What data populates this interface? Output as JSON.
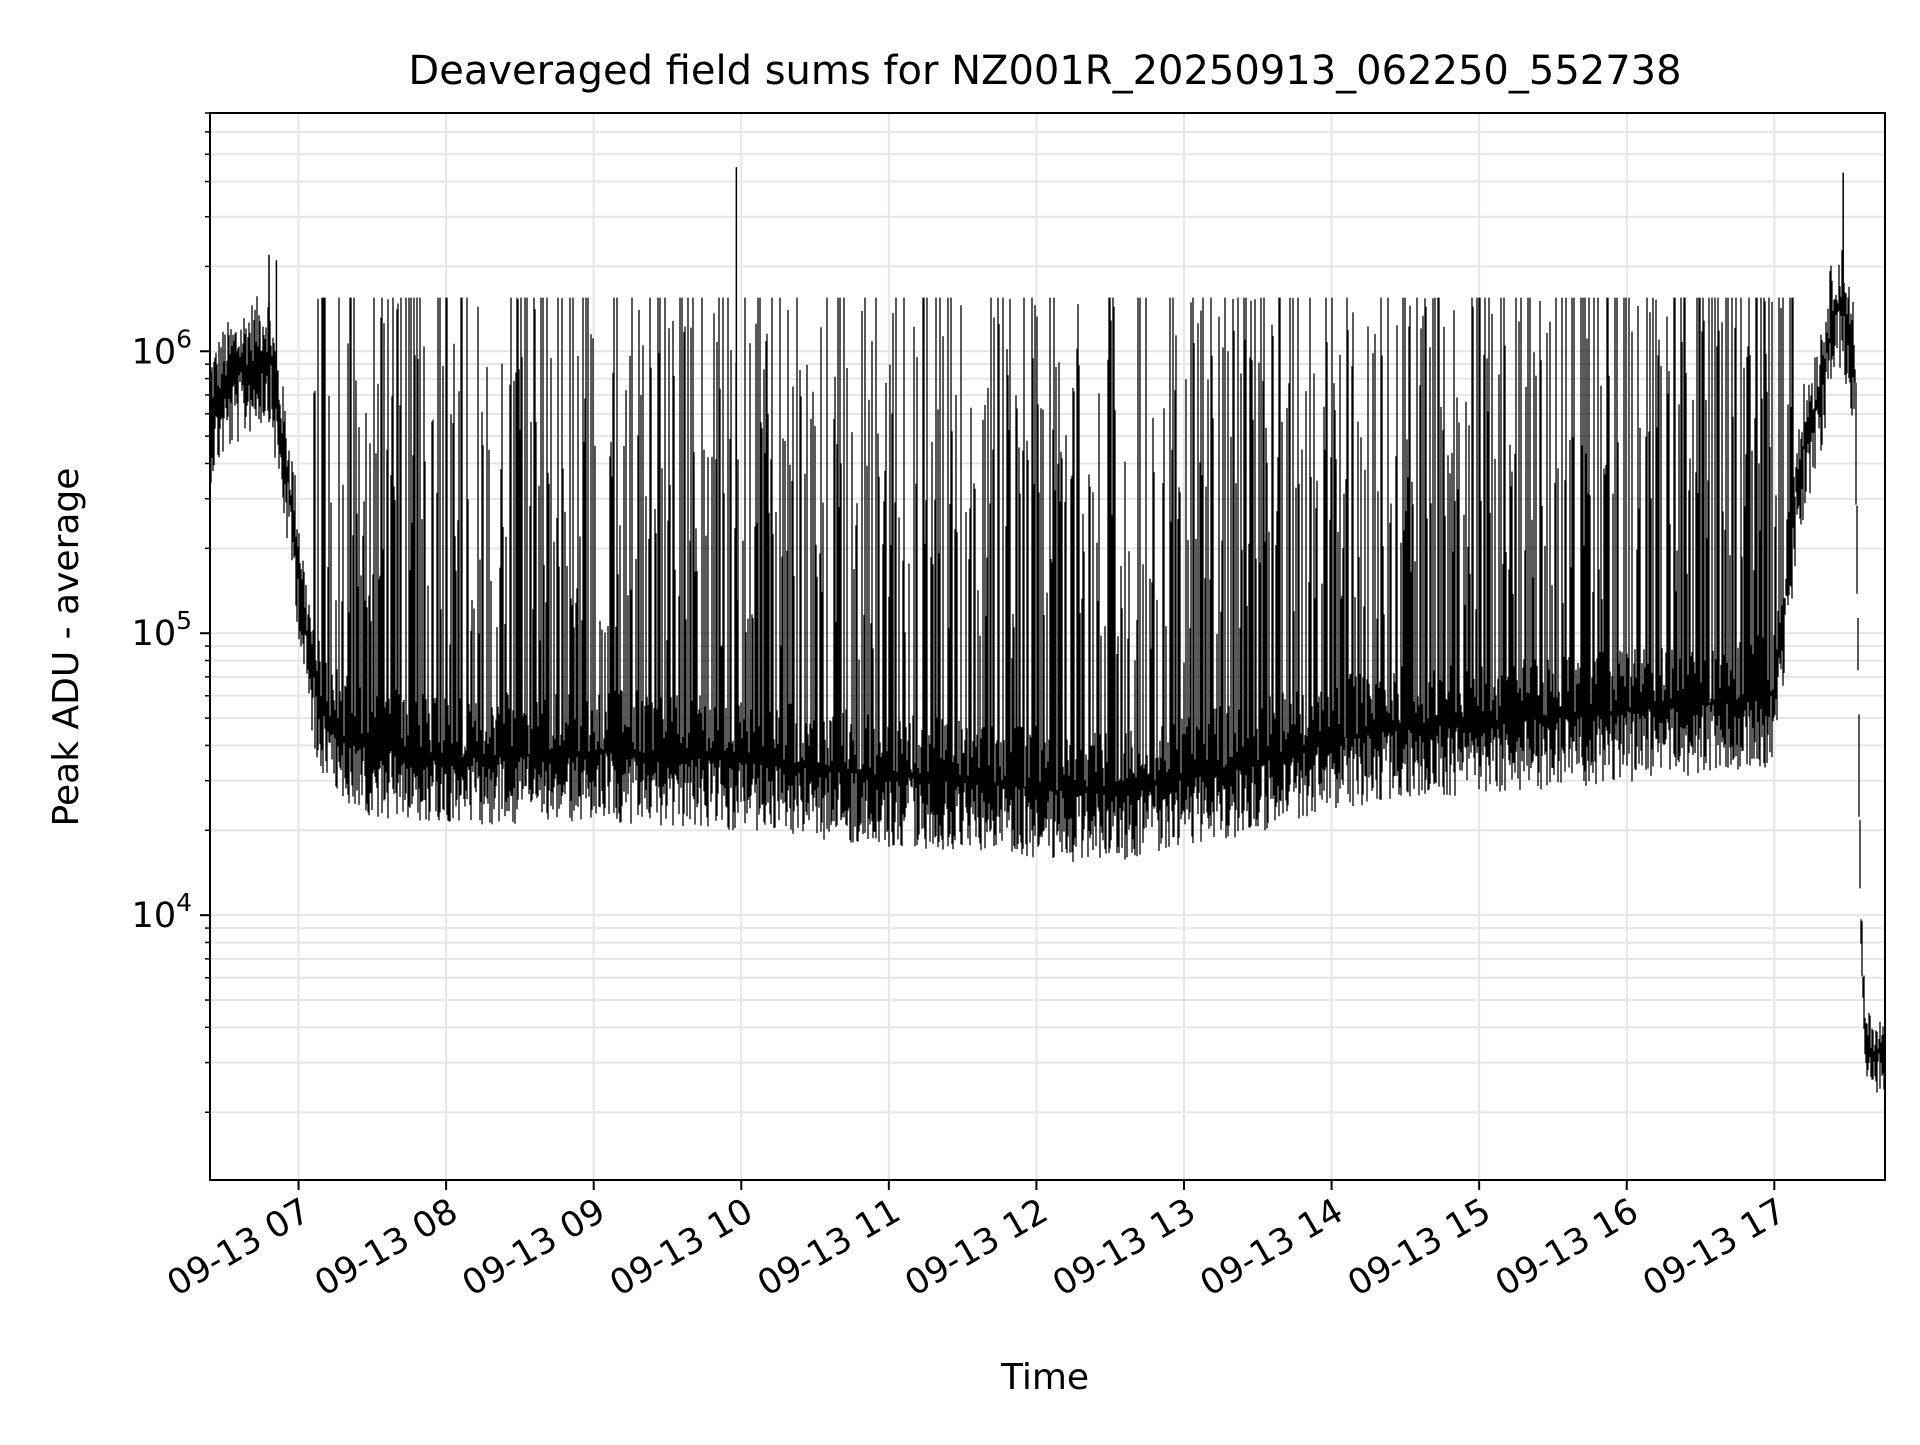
{
  "chart_data": {
    "type": "line",
    "title": "Deaveraged field sums for NZ001R_20250913_062250_552738",
    "xlabel": "Time",
    "ylabel": "Peak ADU - average",
    "y_scale": "log",
    "xlim": [
      "2025-09-13 06:24",
      "2025-09-13 17:45"
    ],
    "ylim": [
      1150,
      7000000
    ],
    "x_ticks": [
      {
        "value": "2025-09-13 07:00",
        "label": "09-13 07"
      },
      {
        "value": "2025-09-13 08:00",
        "label": "09-13 08"
      },
      {
        "value": "2025-09-13 09:00",
        "label": "09-13 09"
      },
      {
        "value": "2025-09-13 10:00",
        "label": "09-13 10"
      },
      {
        "value": "2025-09-13 11:00",
        "label": "09-13 11"
      },
      {
        "value": "2025-09-13 12:00",
        "label": "09-13 12"
      },
      {
        "value": "2025-09-13 13:00",
        "label": "09-13 13"
      },
      {
        "value": "2025-09-13 14:00",
        "label": "09-13 14"
      },
      {
        "value": "2025-09-13 15:00",
        "label": "09-13 15"
      },
      {
        "value": "2025-09-13 16:00",
        "label": "09-13 16"
      },
      {
        "value": "2025-09-13 17:00",
        "label": "09-13 17"
      }
    ],
    "y_ticks": [
      {
        "value": 10000,
        "base": "10",
        "exp": "4"
      },
      {
        "value": 100000,
        "base": "10",
        "exp": "5"
      },
      {
        "value": 1000000,
        "base": "10",
        "exp": "6"
      }
    ],
    "grid": true,
    "line_color": "#000000",
    "grid_color": "#e6e6e6",
    "series": [
      {
        "x": [
          "2025-09-13 06:24",
          "2025-09-13 06:30",
          "2025-09-13 06:40",
          "2025-09-13 06:48",
          "2025-09-13 06:53",
          "2025-09-13 06:58",
          "2025-09-13 07:03",
          "2025-09-13 07:08",
          "2025-09-13 07:15",
          "2025-09-13 07:25",
          "2025-09-13 07:40",
          "2025-09-13 08:00",
          "2025-09-13 08:30",
          "2025-09-13 09:00",
          "2025-09-13 09:30",
          "2025-09-13 10:00",
          "2025-09-13 10:30",
          "2025-09-13 11:00",
          "2025-09-13 11:30",
          "2025-09-13 12:00",
          "2025-09-13 12:30",
          "2025-09-13 13:00",
          "2025-09-13 13:30",
          "2025-09-13 14:00",
          "2025-09-13 14:30",
          "2025-09-13 15:00",
          "2025-09-13 15:30",
          "2025-09-13 16:00",
          "2025-09-13 16:30",
          "2025-09-13 17:00",
          "2025-09-13 17:05",
          "2025-09-13 17:10",
          "2025-09-13 17:18",
          "2025-09-13 17:25",
          "2025-09-13 17:30",
          "2025-09-13 17:33",
          "2025-09-13 17:35",
          "2025-09-13 17:37",
          "2025-09-13 17:40",
          "2025-09-13 17:45"
        ],
        "y": [
          600000,
          750000,
          900000,
          1000000,
          500000,
          250000,
          100000,
          60000,
          45000,
          40000,
          38000,
          36000,
          37000,
          38000,
          37000,
          35000,
          33000,
          31000,
          30000,
          28000,
          27000,
          31000,
          35000,
          42000,
          46000,
          48000,
          50000,
          53000,
          56000,
          60000,
          150000,
          400000,
          700000,
          1500000,
          1300000,
          800000,
          10000,
          3500,
          3300,
          3200
        ]
      }
    ],
    "spikes": [
      {
        "x": "2025-09-13 06:48",
        "y": 2200000
      },
      {
        "x": "2025-09-13 06:51",
        "y": 2100000
      },
      {
        "x": "2025-09-13 09:58",
        "y": 4500000
      },
      {
        "x": "2025-09-13 17:28",
        "y": 4300000
      }
    ]
  }
}
